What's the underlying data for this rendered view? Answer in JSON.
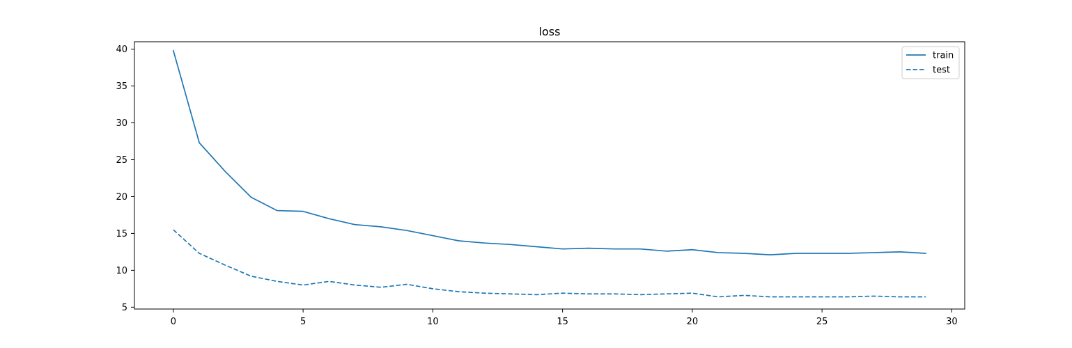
{
  "chart_data": {
    "type": "line",
    "title": "loss",
    "xlabel": "",
    "ylabel": "",
    "xlim": [
      -1.5,
      30.5
    ],
    "ylim": [
      4.75,
      41.0
    ],
    "x_ticks": [
      0,
      5,
      10,
      15,
      20,
      25,
      30
    ],
    "y_ticks": [
      5,
      10,
      15,
      20,
      25,
      30,
      35,
      40
    ],
    "grid": false,
    "legend_position": "top-right",
    "x": [
      0,
      1,
      2,
      3,
      4,
      5,
      6,
      7,
      8,
      9,
      10,
      11,
      12,
      13,
      14,
      15,
      16,
      17,
      18,
      19,
      20,
      21,
      22,
      23,
      24,
      25,
      26,
      27,
      28,
      29
    ],
    "series": [
      {
        "name": "train",
        "style": "solid",
        "color": "#1f77b4",
        "values": [
          39.8,
          27.3,
          23.4,
          19.9,
          18.1,
          18.0,
          17.0,
          16.2,
          15.9,
          15.4,
          14.7,
          14.0,
          13.7,
          13.5,
          13.2,
          12.9,
          13.0,
          12.9,
          12.9,
          12.6,
          12.8,
          12.4,
          12.3,
          12.1,
          12.3,
          12.3,
          12.3,
          12.4,
          12.5,
          12.3
        ]
      },
      {
        "name": "test",
        "style": "dashed",
        "color": "#1f77b4",
        "values": [
          15.5,
          12.3,
          10.7,
          9.2,
          8.5,
          8.0,
          8.5,
          8.0,
          7.7,
          8.1,
          7.5,
          7.1,
          6.9,
          6.8,
          6.7,
          6.9,
          6.8,
          6.8,
          6.7,
          6.8,
          6.9,
          6.4,
          6.6,
          6.4,
          6.4,
          6.4,
          6.4,
          6.5,
          6.4,
          6.4
        ]
      }
    ]
  }
}
